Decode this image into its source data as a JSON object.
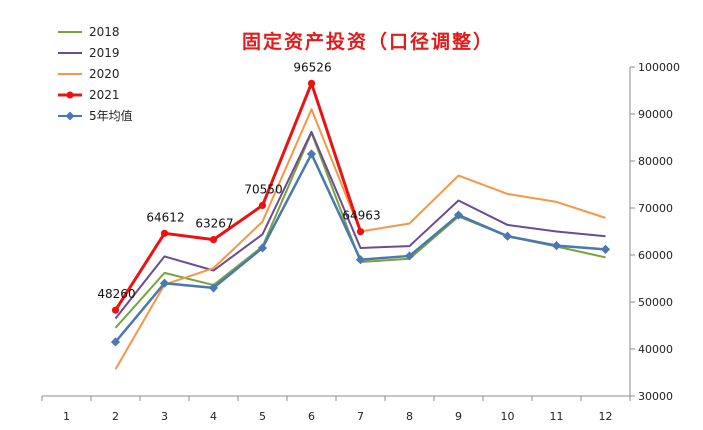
{
  "chart_data": {
    "type": "line",
    "title": "固定资产投资（口径调整）",
    "xlabel": "",
    "ylabel": "",
    "categories": [
      "1",
      "2",
      "3",
      "4",
      "5",
      "6",
      "7",
      "8",
      "9",
      "10",
      "11",
      "12"
    ],
    "ylim": [
      30000,
      100000
    ],
    "yticks": [
      30000,
      40000,
      50000,
      60000,
      70000,
      80000,
      90000,
      100000
    ],
    "y_axis_side": "right",
    "grid": false,
    "legend_position": "top-left",
    "series": [
      {
        "name": "2018",
        "color": "#77a33a",
        "marker": "none",
        "values": [
          null,
          44500,
          56200,
          53600,
          61800,
          86000,
          58500,
          59200,
          68200,
          64000,
          61800,
          59500
        ]
      },
      {
        "name": "2019",
        "color": "#6a4c93",
        "marker": "none",
        "values": [
          null,
          46500,
          59700,
          56700,
          64400,
          86200,
          61500,
          61900,
          71600,
          66400,
          65000,
          64000
        ]
      },
      {
        "name": "2020",
        "color": "#f79646",
        "marker": "none",
        "values": [
          null,
          35700,
          53700,
          57200,
          67100,
          91000,
          65000,
          66700,
          76900,
          73000,
          71300,
          67900
        ]
      },
      {
        "name": "2021",
        "color": "#ee1111",
        "marker": "circle",
        "values": [
          null,
          48260,
          64612,
          63267,
          70550,
          96526,
          64963,
          null,
          null,
          null,
          null,
          null
        ]
      },
      {
        "name": "5年均值",
        "color": "#4a78b0",
        "marker": "diamond",
        "values": [
          null,
          41500,
          54000,
          53000,
          61500,
          81500,
          59000,
          59800,
          68500,
          64000,
          62000,
          61200
        ]
      }
    ],
    "data_labels": [
      {
        "series": "2021",
        "x": "2",
        "text": "48260"
      },
      {
        "series": "2021",
        "x": "3",
        "text": "64612"
      },
      {
        "series": "2021",
        "x": "4",
        "text": "63267"
      },
      {
        "series": "2021",
        "x": "5",
        "text": "70550"
      },
      {
        "series": "2021",
        "x": "6",
        "text": "96526"
      },
      {
        "series": "2021",
        "x": "7",
        "text": "64963"
      }
    ]
  }
}
